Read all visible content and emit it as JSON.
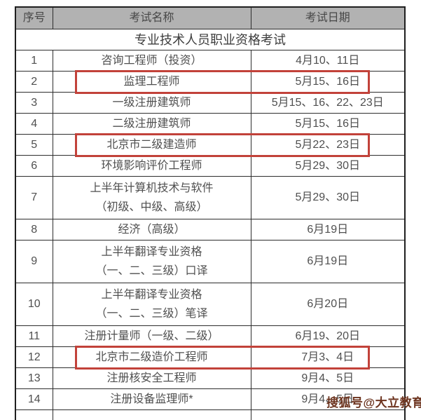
{
  "table": {
    "columns": [
      "序号",
      "考试名称",
      "考试日期"
    ],
    "section_title": "专业技术人员职业资格考试",
    "rows": [
      {
        "no": "1",
        "name": [
          "咨询工程师（投资）"
        ],
        "date": "4月10、11日",
        "highlighted": false
      },
      {
        "no": "2",
        "name": [
          "监理工程师"
        ],
        "date": "5月15、16日",
        "highlighted": true
      },
      {
        "no": "3",
        "name": [
          "一级注册建筑师"
        ],
        "date": "5月15、16、22、23日",
        "highlighted": false
      },
      {
        "no": "4",
        "name": [
          "二级注册建筑师"
        ],
        "date": "5月15、16日",
        "highlighted": false
      },
      {
        "no": "5",
        "name": [
          "北京市二级建造师"
        ],
        "date": "5月22、23日",
        "highlighted": true
      },
      {
        "no": "6",
        "name": [
          "环境影响评价工程师"
        ],
        "date": "5月29、30日",
        "highlighted": false
      },
      {
        "no": "7",
        "name": [
          "上半年计算机技术与软件",
          "（初级、中级、高级）"
        ],
        "date": "5月29、30日",
        "highlighted": false
      },
      {
        "no": "8",
        "name": [
          "经济（高级）"
        ],
        "date": "6月19日",
        "highlighted": false
      },
      {
        "no": "9",
        "name": [
          "上半年翻译专业资格",
          "（一、二、三级）口译"
        ],
        "date": "6月19日",
        "highlighted": false
      },
      {
        "no": "10",
        "name": [
          "上半年翻译专业资格",
          "（一、二、三级）笔译"
        ],
        "date": "6月20日",
        "highlighted": false
      },
      {
        "no": "11",
        "name": [
          "注册计量师（一级、二级）"
        ],
        "date": "6月19、20日",
        "highlighted": false
      },
      {
        "no": "12",
        "name": [
          "北京市二级造价工程师"
        ],
        "date": "7月3、4日",
        "highlighted": true
      },
      {
        "no": "13",
        "name": [
          "注册核安全工程师"
        ],
        "date": "9月4、5日",
        "highlighted": false
      },
      {
        "no": "14",
        "name": [
          "注册设备监理师*"
        ],
        "date": "9月4、5日",
        "highlighted": false
      }
    ]
  },
  "watermark": {
    "text": "搜狐号@大立教育",
    "color": "#6d341f"
  },
  "colors": {
    "header_bg": "#b2b2b2",
    "border": "#2d2d2d",
    "text": "#4f4f4f",
    "highlight_box": "#c2423a",
    "background": "#ffffff"
  }
}
